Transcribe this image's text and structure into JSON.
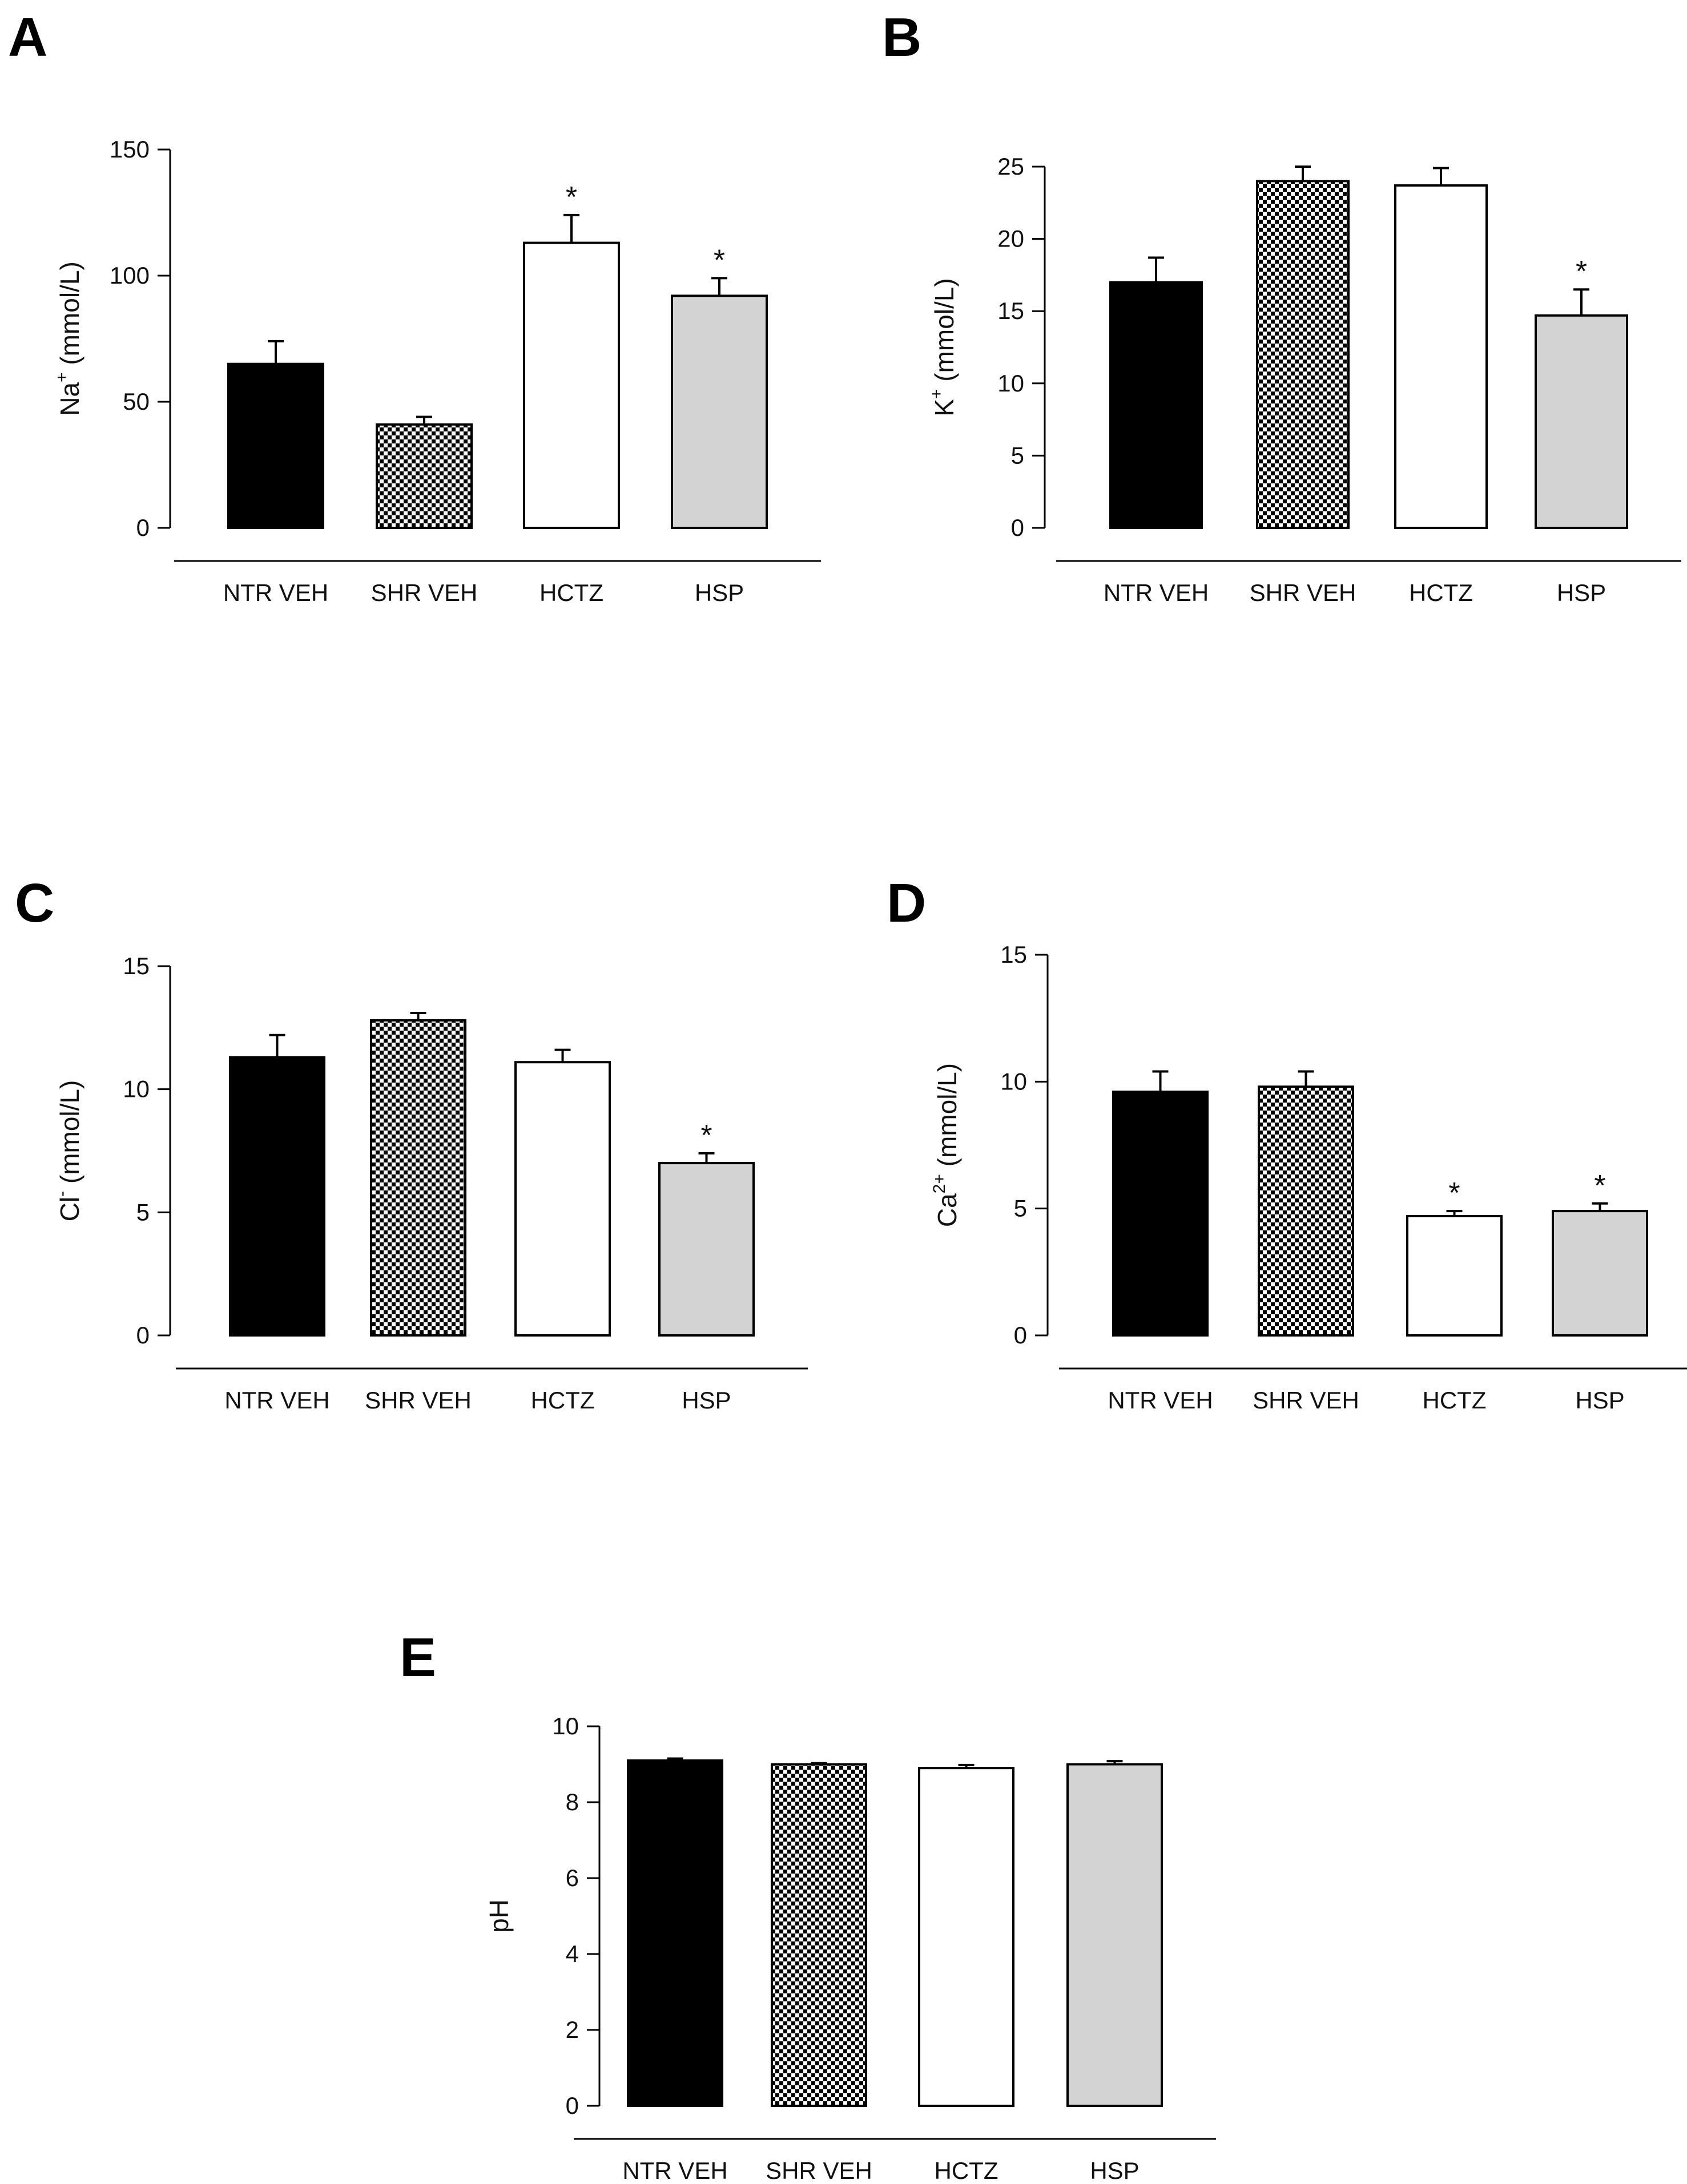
{
  "figure": {
    "background": "#ffffff",
    "bar_stroke": "#000000"
  },
  "categories": [
    "NTR VEH",
    "SHR VEH",
    "HCTZ",
    "HSP"
  ],
  "bar_fills": [
    "solid-black",
    "checkerboard",
    "white",
    "light-gray"
  ],
  "colors": {
    "black": "#000000",
    "white": "#ffffff",
    "gray": "#d3d3d3",
    "checker_dark": "#000000",
    "checker_light": "#ffffff"
  },
  "significance_marker": "*",
  "chart_data": [
    {
      "id": "A",
      "letter": "A",
      "type": "bar",
      "categories": [
        "NTR VEH",
        "SHR VEH",
        "HCTZ",
        "HSP"
      ],
      "values": [
        65,
        41,
        113,
        92
      ],
      "errors": [
        9,
        3,
        11,
        7
      ],
      "significant": [
        false,
        false,
        true,
        true
      ],
      "ylim": [
        0,
        150
      ],
      "yticks": [
        0,
        50,
        100,
        150
      ],
      "ylabel": {
        "base": "Na",
        "sup": "+",
        "unit": " (mmol/L)"
      },
      "xlabel": "",
      "title": ""
    },
    {
      "id": "B",
      "letter": "B",
      "type": "bar",
      "categories": [
        "NTR VEH",
        "SHR VEH",
        "HCTZ",
        "HSP"
      ],
      "values": [
        17,
        24,
        23.7,
        14.7
      ],
      "errors": [
        1.7,
        1.0,
        1.2,
        1.8
      ],
      "significant": [
        false,
        false,
        false,
        true
      ],
      "ylim": [
        0,
        25
      ],
      "yticks": [
        0,
        5,
        10,
        15,
        20,
        25
      ],
      "ylabel": {
        "base": "K",
        "sup": "+",
        "unit": " (mmol/L)"
      },
      "xlabel": "",
      "title": ""
    },
    {
      "id": "C",
      "letter": "C",
      "type": "bar",
      "categories": [
        "NTR VEH",
        "SHR VEH",
        "HCTZ",
        "HSP"
      ],
      "values": [
        11.3,
        12.8,
        11.1,
        7.0
      ],
      "errors": [
        0.9,
        0.3,
        0.5,
        0.4
      ],
      "significant": [
        false,
        false,
        false,
        true
      ],
      "ylim": [
        0,
        15
      ],
      "yticks": [
        0,
        5,
        10,
        15
      ],
      "ylabel": {
        "base": "Cl",
        "sup": "-",
        "unit": " (mmol/L)"
      },
      "xlabel": "",
      "title": ""
    },
    {
      "id": "D",
      "letter": "D",
      "type": "bar",
      "categories": [
        "NTR VEH",
        "SHR VEH",
        "HCTZ",
        "HSP"
      ],
      "values": [
        9.6,
        9.8,
        4.7,
        4.9
      ],
      "errors": [
        0.8,
        0.6,
        0.2,
        0.3
      ],
      "significant": [
        false,
        false,
        true,
        true
      ],
      "ylim": [
        0,
        15
      ],
      "yticks": [
        0,
        5,
        10,
        15
      ],
      "ylabel": {
        "base": "Ca",
        "sup": "2+",
        "unit": " (mmol/L)"
      },
      "xlabel": "",
      "title": ""
    },
    {
      "id": "E",
      "letter": "E",
      "type": "bar",
      "categories": [
        "NTR VEH",
        "SHR VEH",
        "HCTZ",
        "HSP"
      ],
      "values": [
        9.1,
        9.0,
        8.9,
        9.0
      ],
      "errors": [
        0.05,
        0.03,
        0.08,
        0.08
      ],
      "significant": [
        false,
        false,
        false,
        false
      ],
      "ylim": [
        0,
        10
      ],
      "yticks": [
        0,
        2,
        4,
        6,
        8,
        10
      ],
      "ylabel": {
        "base": "pH",
        "sup": "",
        "unit": ""
      },
      "xlabel": "",
      "title": ""
    }
  ]
}
